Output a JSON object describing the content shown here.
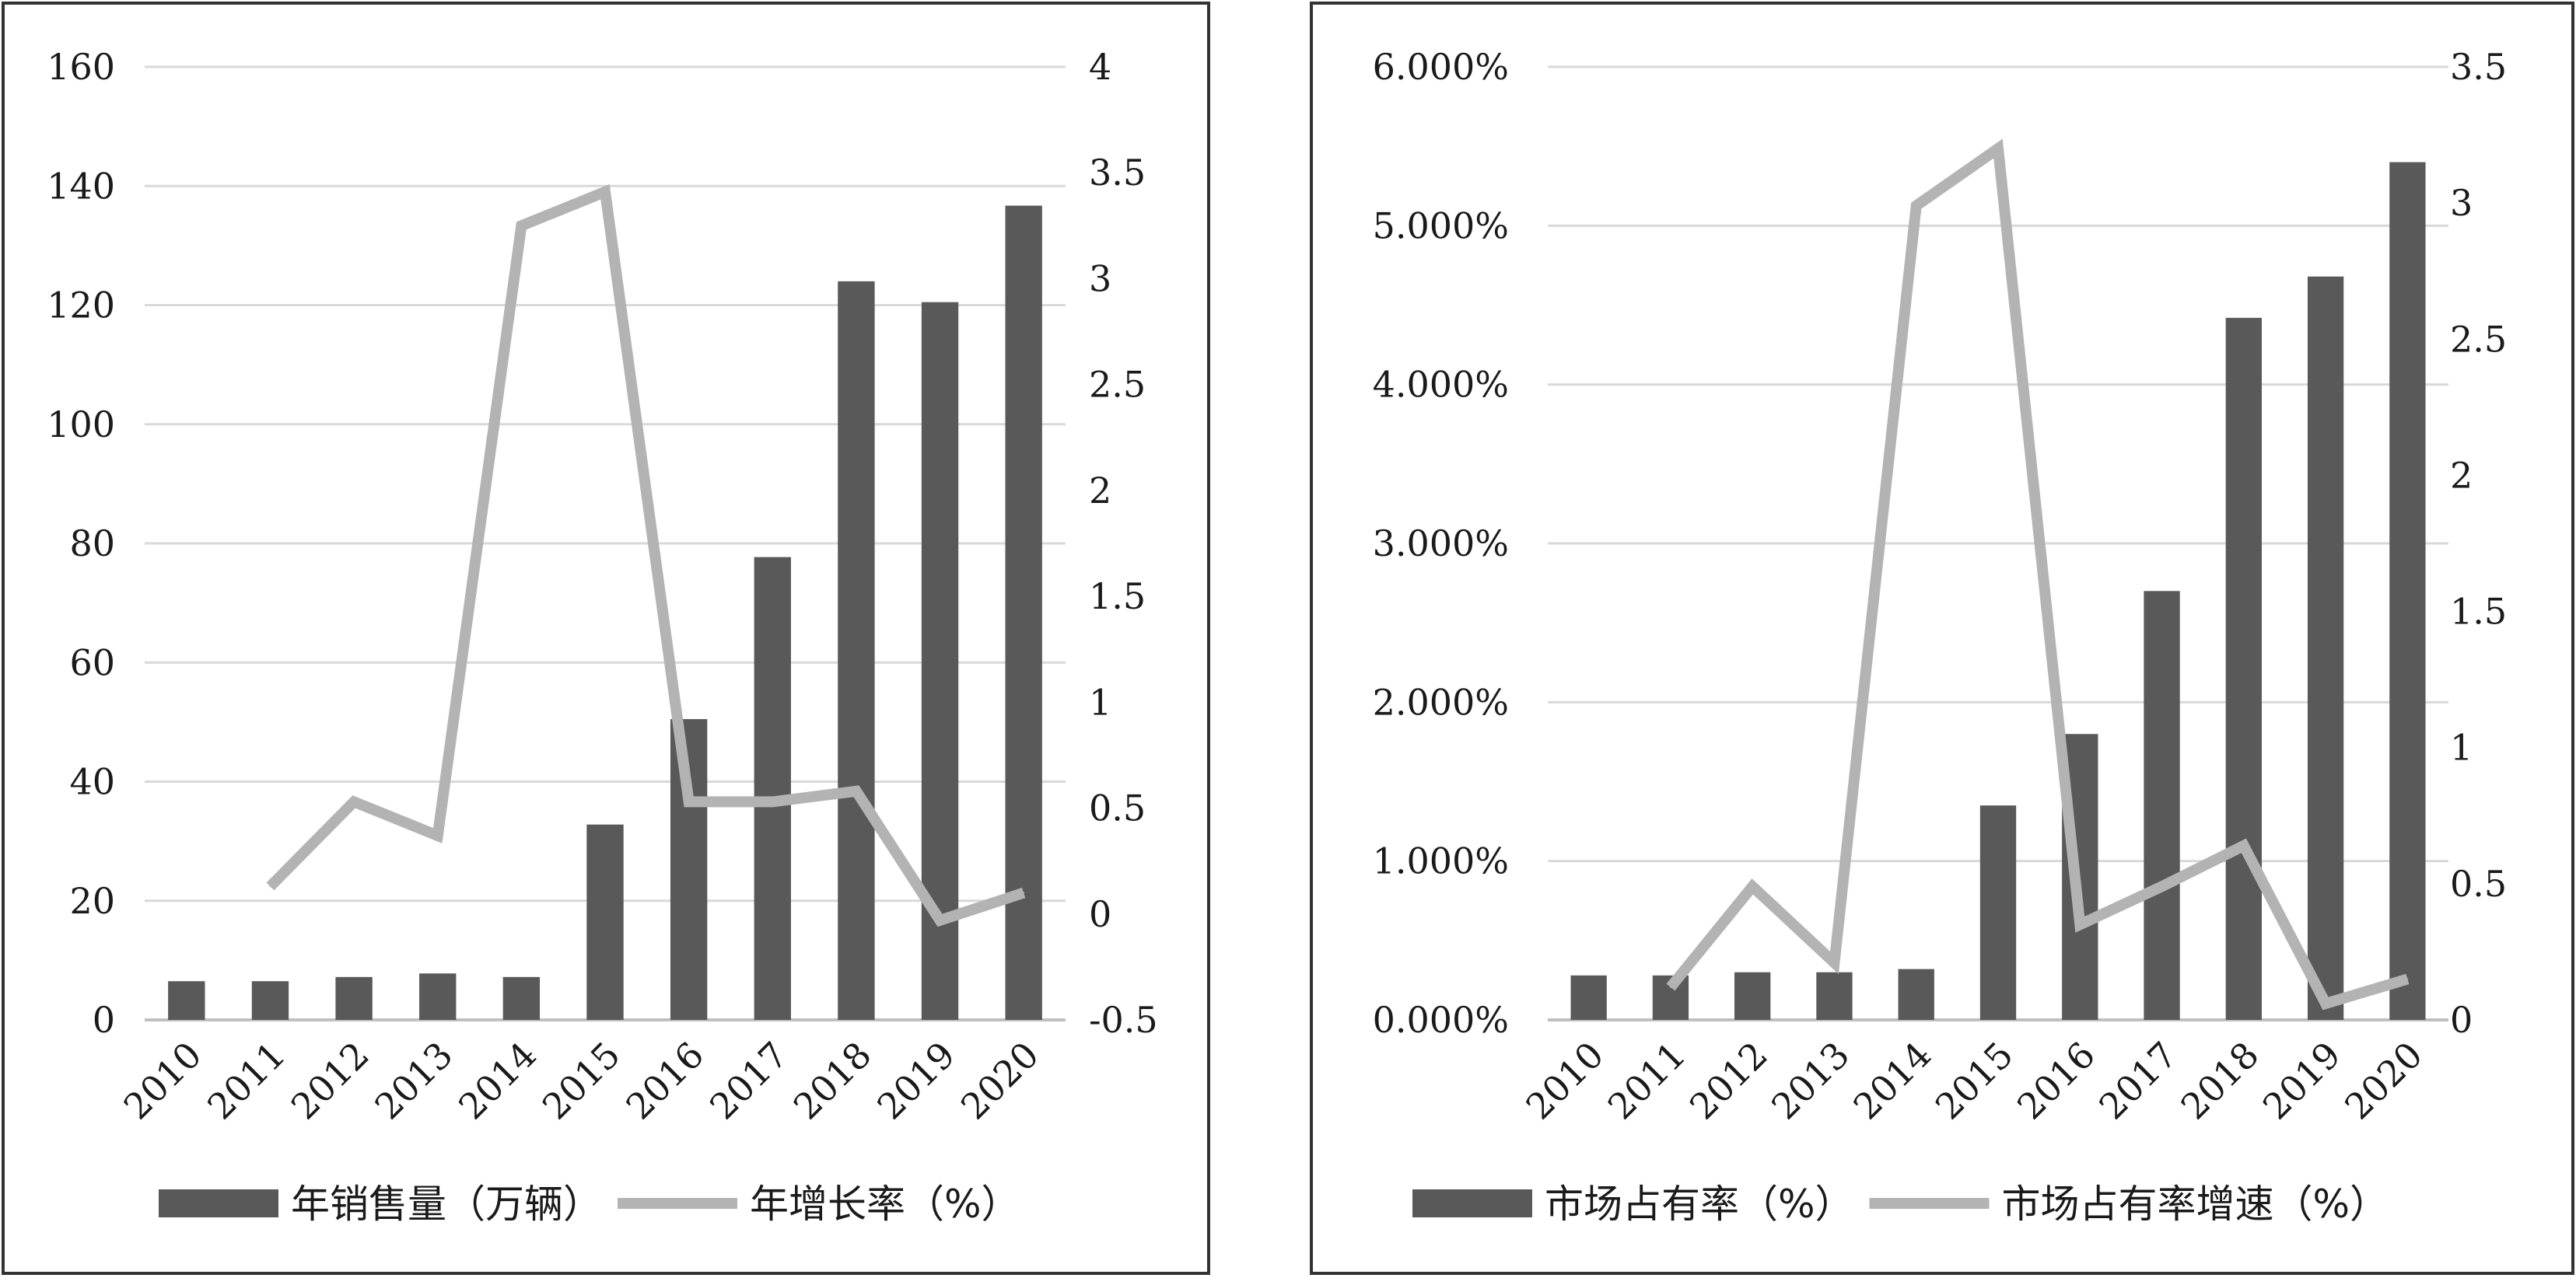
{
  "chart_data": [
    {
      "type": "bar+line",
      "categories": [
        "2010",
        "2011",
        "2012",
        "2013",
        "2014",
        "2015",
        "2016",
        "2017",
        "2018",
        "2019",
        "2020"
      ],
      "series": [
        {
          "name": "年销售量（万辆）",
          "kind": "bar",
          "axis": "left",
          "values": [
            6.5,
            6.5,
            7.2,
            7.8,
            7.2,
            32.8,
            50.5,
            77.7,
            124.0,
            120.5,
            136.7
          ],
          "color": "#595959"
        },
        {
          "name": "年增长率（%）",
          "kind": "line",
          "axis": "right",
          "values": [
            null,
            0.13,
            0.53,
            0.37,
            3.25,
            3.41,
            0.53,
            0.53,
            0.58,
            -0.03,
            0.1
          ],
          "color": "#b3b3b3"
        }
      ],
      "ylim_left": [
        0,
        160
      ],
      "ylim_right": [
        -0.5,
        4
      ],
      "yticks_left": [
        "0",
        "20",
        "40",
        "60",
        "80",
        "100",
        "120",
        "140",
        "160"
      ],
      "yticks_right": [
        "-0.5",
        "0",
        "0.5",
        "1",
        "1.5",
        "2",
        "2.5",
        "3",
        "3.5",
        "4"
      ],
      "legend": "bottom",
      "grid": true
    },
    {
      "type": "bar+line",
      "categories": [
        "2010",
        "2011",
        "2012",
        "2013",
        "2014",
        "2015",
        "2016",
        "2017",
        "2018",
        "2019",
        "2020"
      ],
      "series": [
        {
          "name": "市场占有率（%）",
          "kind": "bar",
          "axis": "left",
          "values": [
            0.28,
            0.28,
            0.3,
            0.3,
            0.32,
            1.35,
            1.8,
            2.7,
            4.42,
            4.68,
            5.4
          ],
          "color": "#595959"
        },
        {
          "name": "市场占有率增速（%）",
          "kind": "line",
          "axis": "right",
          "values": [
            null,
            0.12,
            0.49,
            0.21,
            2.99,
            3.2,
            0.35,
            0.49,
            0.64,
            0.06,
            0.15
          ],
          "color": "#b3b3b3"
        }
      ],
      "ylim_left": [
        0,
        6
      ],
      "ylim_right": [
        0,
        3.5
      ],
      "yticks_left": [
        "0.000%",
        "1.000%",
        "2.000%",
        "3.000%",
        "4.000%",
        "5.000%",
        "6.000%"
      ],
      "yticks_right": [
        "0",
        "0.5",
        "1",
        "1.5",
        "2",
        "2.5",
        "3",
        "3.5"
      ],
      "legend": "bottom",
      "grid": true
    }
  ]
}
